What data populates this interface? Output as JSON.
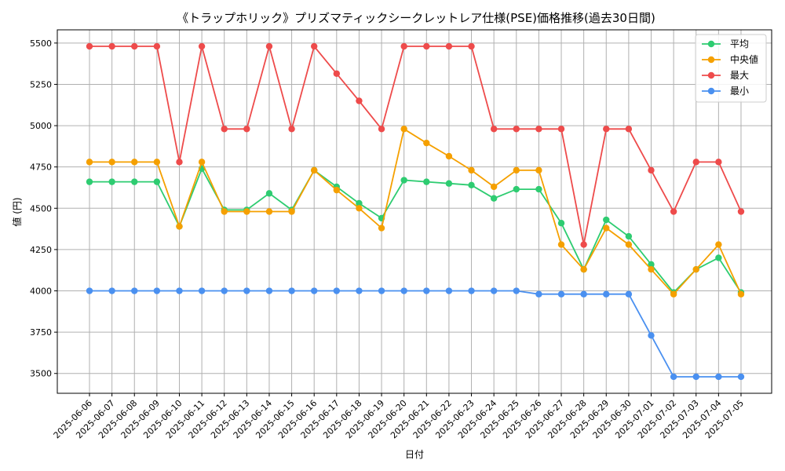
{
  "chart_data": {
    "type": "line",
    "title": "《トラップホリック》プリズマティックシークレットレア仕様(PSE)価格推移(過去30日間)",
    "xlabel": "日付",
    "ylabel": "値 (円)",
    "ylim": [
      3380,
      5580
    ],
    "yticks": [
      3500,
      3750,
      4000,
      4250,
      4500,
      4750,
      5000,
      5250,
      5500
    ],
    "grid": true,
    "legend_position": "top-right",
    "x": [
      "2025-06-06",
      "2025-06-07",
      "2025-06-08",
      "2025-06-09",
      "2025-06-10",
      "2025-06-11",
      "2025-06-12",
      "2025-06-13",
      "2025-06-14",
      "2025-06-15",
      "2025-06-16",
      "2025-06-17",
      "2025-06-18",
      "2025-06-19",
      "2025-06-20",
      "2025-06-21",
      "2025-06-22",
      "2025-06-23",
      "2025-06-24",
      "2025-06-25",
      "2025-06-26",
      "2025-06-27",
      "2025-06-28",
      "2025-06-29",
      "2025-06-30",
      "2025-07-01",
      "2025-07-02",
      "2025-07-03",
      "2025-07-04",
      "2025-07-05"
    ],
    "series": [
      {
        "name": "平均",
        "color": "#2ecc71",
        "values": [
          4660,
          4660,
          4660,
          4660,
          4390,
          4740,
          4490,
          4490,
          4590,
          4490,
          4730,
          4630,
          4530,
          4440,
          4670,
          4660,
          4650,
          4640,
          4560,
          4615,
          4615,
          4410,
          4130,
          4430,
          4330,
          4160,
          3990,
          4130,
          4200,
          3990
        ]
      },
      {
        "name": "中央値",
        "color": "#f5a000",
        "values": [
          4780,
          4780,
          4780,
          4780,
          4390,
          4780,
          4480,
          4480,
          4480,
          4480,
          4730,
          4610,
          4500,
          4380,
          4980,
          4895,
          4815,
          4730,
          4630,
          4730,
          4730,
          4280,
          4130,
          4380,
          4280,
          4130,
          3980,
          4130,
          4280,
          3980
        ]
      },
      {
        "name": "最大",
        "color": "#ee4b4b",
        "values": [
          5480,
          5480,
          5480,
          5480,
          4780,
          5480,
          4980,
          4980,
          5480,
          4980,
          5480,
          5315,
          5150,
          4980,
          5480,
          5480,
          5480,
          5480,
          4980,
          4980,
          4980,
          4980,
          4280,
          4980,
          4980,
          4730,
          4480,
          4780,
          4780,
          4480
        ]
      },
      {
        "name": "最小",
        "color": "#4a90f0",
        "values": [
          4000,
          4000,
          4000,
          4000,
          4000,
          4000,
          4000,
          4000,
          4000,
          4000,
          4000,
          4000,
          4000,
          4000,
          4000,
          4000,
          4000,
          4000,
          4000,
          4000,
          3980,
          3980,
          3980,
          3980,
          3980,
          3730,
          3480,
          3480,
          3480,
          3480
        ]
      }
    ]
  }
}
